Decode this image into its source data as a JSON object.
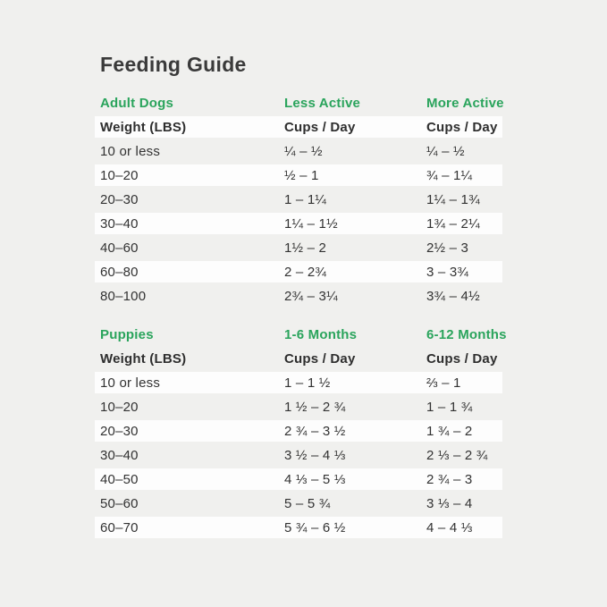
{
  "page": {
    "title": "Feeding Guide"
  },
  "colors": {
    "accent_green": "#2aa45c",
    "background": "#f0f0ee",
    "row_stripe": "#fdfdfd",
    "title_text": "#3a3a3a",
    "body_text": "#323232"
  },
  "sections": [
    {
      "id": "adult-dogs",
      "headers": [
        "Adult Dogs",
        "Less Active",
        "More Active"
      ],
      "column_labels": [
        "Weight (LBS)",
        "Cups / Day",
        "Cups / Day"
      ],
      "rows": [
        [
          "10 or less",
          "¼ – ½",
          "¼ – ½"
        ],
        [
          "10–20",
          "½ – 1",
          "¾ – 1¼"
        ],
        [
          "20–30",
          "1 – 1¼",
          "1¼ – 1¾"
        ],
        [
          "30–40",
          "1¼ – 1½",
          "1¾ – 2¼"
        ],
        [
          "40–60",
          "1½ – 2",
          "2½ – 3"
        ],
        [
          "60–80",
          "2 – 2¾",
          "3 – 3¾"
        ],
        [
          "80–100",
          "2¾ – 3¼",
          "3¾ – 4½"
        ]
      ]
    },
    {
      "id": "puppies",
      "headers": [
        "Puppies",
        "1-6 Months",
        "6-12 Months"
      ],
      "column_labels": [
        "Weight (LBS)",
        "Cups / Day",
        "Cups / Day"
      ],
      "rows": [
        [
          "10 or less",
          "1 – 1 ½",
          "⅔ – 1"
        ],
        [
          "10–20",
          "1 ½ – 2 ¾",
          "1 – 1 ¾"
        ],
        [
          "20–30",
          "2 ¾ – 3 ½",
          "1 ¾ – 2"
        ],
        [
          "30–40",
          "3 ½ – 4 ⅓",
          "2 ⅓ – 2 ¾"
        ],
        [
          "40–50",
          "4 ⅓ – 5 ⅓",
          "2 ¾ – 3"
        ],
        [
          "50–60",
          "5 – 5 ¾",
          "3 ⅓ – 4"
        ],
        [
          "60–70",
          "5 ¾ – 6 ½",
          "4 – 4 ⅓"
        ]
      ]
    }
  ],
  "chart_data": [
    {
      "type": "table",
      "title": "Adult Dogs",
      "columns": [
        "Weight (LBS)",
        "Less Active Cups / Day",
        "More Active Cups / Day"
      ],
      "rows": [
        [
          "10 or less",
          "¼ – ½",
          "¼ – ½"
        ],
        [
          "10–20",
          "½ – 1",
          "¾ – 1¼"
        ],
        [
          "20–30",
          "1 – 1¼",
          "1¼ – 1¾"
        ],
        [
          "30–40",
          "1¼ – 1½",
          "1¾ – 2¼"
        ],
        [
          "40–60",
          "1½ – 2",
          "2½ – 3"
        ],
        [
          "60–80",
          "2 – 2¾",
          "3 – 3¾"
        ],
        [
          "80–100",
          "2¾ – 3¼",
          "3¾ – 4½"
        ]
      ]
    },
    {
      "type": "table",
      "title": "Puppies",
      "columns": [
        "Weight (LBS)",
        "1-6 Months Cups / Day",
        "6-12 Months Cups / Day"
      ],
      "rows": [
        [
          "10 or less",
          "1 – 1½",
          "⅔ – 1"
        ],
        [
          "10–20",
          "1½ – 2¾",
          "1 – 1¾"
        ],
        [
          "20–30",
          "2¾ – 3½",
          "1¾ – 2"
        ],
        [
          "30–40",
          "3½ – 4⅓",
          "2⅓ – 2¾"
        ],
        [
          "40–50",
          "4⅓ – 5⅓",
          "2¾ – 3"
        ],
        [
          "50–60",
          "5 – 5¾",
          "3⅓ – 4"
        ],
        [
          "60–70",
          "5¾ – 6½",
          "4 – 4⅓"
        ]
      ]
    }
  ]
}
